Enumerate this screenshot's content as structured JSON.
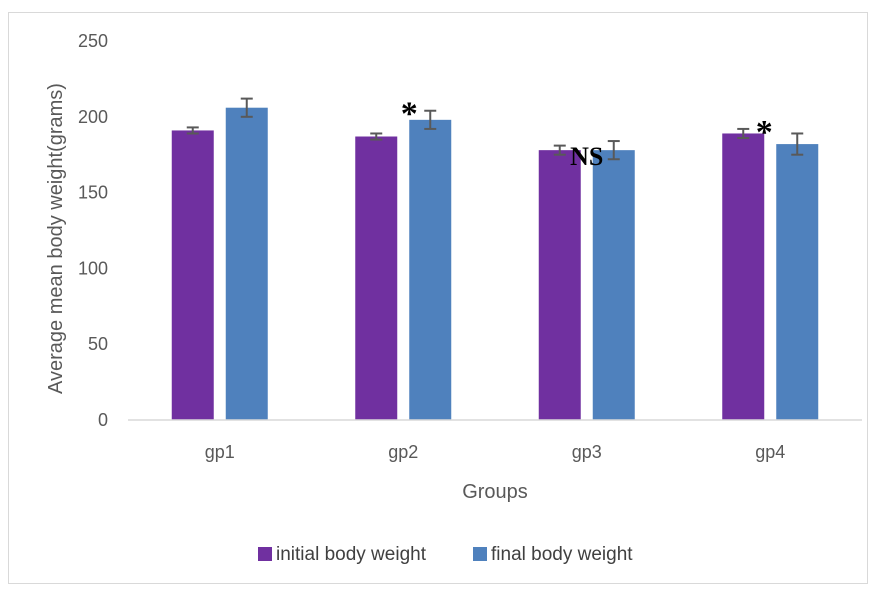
{
  "chart_data": {
    "type": "bar",
    "title": "",
    "xlabel": "Groups",
    "ylabel": "Average  mean body weight(grams)",
    "categories": [
      "gp1",
      "gp2",
      "gp3",
      "gp4"
    ],
    "series": [
      {
        "name": "initial body weight",
        "color": "#7030a0",
        "values": [
          191,
          187,
          178,
          189
        ],
        "errors": [
          2,
          2,
          3,
          3
        ]
      },
      {
        "name": "final body weight",
        "color": "#4f81bd",
        "values": [
          206,
          198,
          178,
          182
        ],
        "errors": [
          6,
          6,
          6,
          7
        ]
      }
    ],
    "ylim": [
      0,
      250
    ],
    "yticks": [
      0,
      50,
      100,
      150,
      200,
      250
    ],
    "grid": false,
    "legend_position": "bottom",
    "annotations": [
      {
        "text": "*",
        "category": "gp2"
      },
      {
        "text": "NS",
        "category": "gp3"
      },
      {
        "text": "*",
        "category": "gp4"
      }
    ]
  }
}
